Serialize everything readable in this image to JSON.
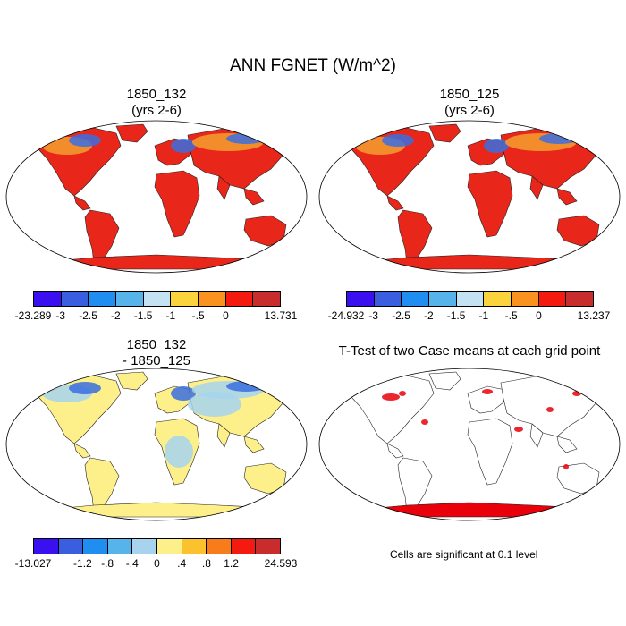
{
  "main_title": "ANN FGNET (W/m^2)",
  "panels": {
    "a": {
      "title_line1": "1850_132",
      "title_line2": "(yrs 2-6)"
    },
    "b": {
      "title_line1": "1850_125",
      "title_line2": "(yrs 2-6)"
    },
    "c": {
      "title_line1": "1850_132",
      "title_line2": "- 1850_125"
    },
    "d": {
      "title_line1": "T-Test of two Case means at each grid point"
    }
  },
  "colorbars": {
    "a": {
      "colors": [
        "#3b10f0",
        "#3a5ee0",
        "#1f8ef0",
        "#56b4ea",
        "#c3e3f3",
        "#fbd33d",
        "#f9921f",
        "#f41a10",
        "#c92c2c"
      ],
      "labels": [
        "-23.289",
        "-3",
        "-2.5",
        "-2",
        "-1.5",
        "-1",
        "-.5",
        "0",
        "13.731"
      ]
    },
    "b": {
      "colors": [
        "#3b10f0",
        "#3a5ee0",
        "#1f8ef0",
        "#56b4ea",
        "#c3e3f3",
        "#fbd33d",
        "#f9921f",
        "#f41a10",
        "#c92c2c"
      ],
      "labels": [
        "-24.932",
        "-3",
        "-2.5",
        "-2",
        "-1.5",
        "-1",
        "-.5",
        "0",
        "13.237"
      ]
    },
    "c": {
      "colors": [
        "#3b10f0",
        "#3a5ee0",
        "#1f8ef0",
        "#56b4ea",
        "#a7d3ee",
        "#fdf08a",
        "#fbc22e",
        "#f77d1c",
        "#f41a10",
        "#c92c2c"
      ],
      "labels": [
        "-13.027",
        "-1.2",
        "-.8",
        "-.4",
        "0",
        ".4",
        ".8",
        "1.2",
        "24.593"
      ]
    }
  },
  "significance_note": "Cells are significant at 0.1 level",
  "map_colors": {
    "a": {
      "land": "#e8261a",
      "north": "#f5a030",
      "high": "#3a6ee0",
      "ocean": "#ffffff"
    },
    "b": {
      "land": "#e8261a",
      "north": "#f5a030",
      "high": "#3a6ee0",
      "ocean": "#ffffff"
    },
    "c": {
      "land": "#fdf08a",
      "north": "#a7d3ee",
      "high": "#3a6ee0",
      "ocean": "#ffffff"
    },
    "d": {
      "land": "#ffffff",
      "north": "#ffffff",
      "high": "#e8000b",
      "ocean": "#ffffff"
    }
  }
}
